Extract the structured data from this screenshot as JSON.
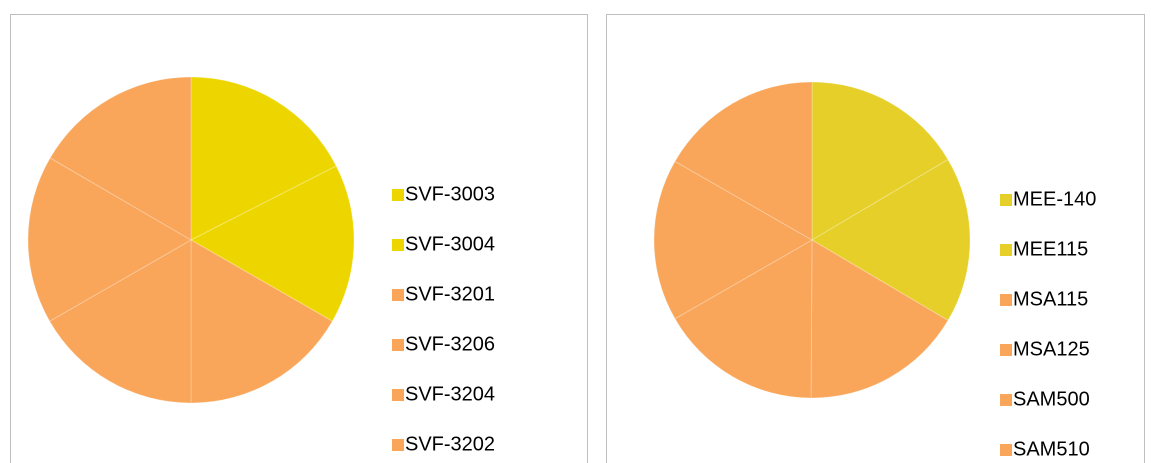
{
  "chart_data": [
    {
      "type": "pie",
      "categories": [
        "SVF-3003",
        "SVF-3004",
        "SVF-3201",
        "SVF-3206",
        "SVF-3204",
        "SVF-3202"
      ],
      "values": [
        17.5,
        15.8,
        16.7,
        16.7,
        16.7,
        16.6
      ],
      "colors": [
        "#edd600",
        "#edd600",
        "#f9a65a",
        "#f9a65a",
        "#f9a65a",
        "#f9a65a"
      ],
      "legend": "right"
    },
    {
      "type": "pie",
      "categories": [
        "MEE-140",
        "MEE115",
        "MSA115",
        "MSA125",
        "SAM500",
        "SAM510"
      ],
      "values": [
        16.5,
        17,
        16.6,
        16.6,
        16.6,
        16.7
      ],
      "colors": [
        "#e6cf29",
        "#e6cf29",
        "#f9a65a",
        "#f9a65a",
        "#f9a65a",
        "#f9a65a"
      ],
      "legend": "right"
    }
  ]
}
